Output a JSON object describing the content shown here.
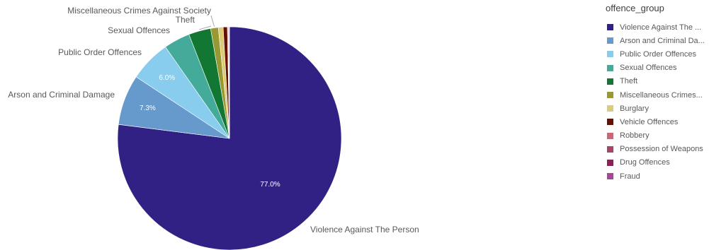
{
  "chart_data": {
    "type": "pie",
    "legend_title": "offence_group",
    "legend_position": "right",
    "slices": [
      {
        "name": "Violence Against The Person",
        "legend_label": "Violence Against The ...",
        "label": "Violence Against The Person",
        "value": 77.0,
        "pct_label": "77.0%",
        "color": "#322185"
      },
      {
        "name": "Arson and Criminal Damage",
        "legend_label": "Arson and Criminal Da...",
        "label": "Arson and Criminal Damage",
        "value": 7.3,
        "pct_label": "7.3%",
        "color": "#6699cc"
      },
      {
        "name": "Public Order Offences",
        "legend_label": "Public Order Offences",
        "label": "Public Order Offences",
        "value": 6.0,
        "pct_label": "6.0%",
        "color": "#88ccee"
      },
      {
        "name": "Sexual Offences",
        "legend_label": "Sexual Offences",
        "label": "Sexual Offences",
        "value": 3.8,
        "pct_label": "",
        "color": "#44aa99"
      },
      {
        "name": "Theft",
        "legend_label": "Theft",
        "label": "Theft",
        "value": 3.2,
        "pct_label": "",
        "color": "#117733"
      },
      {
        "name": "Miscellaneous Crimes Against Society",
        "legend_label": "Miscellaneous Crimes...",
        "label": "Miscellaneous Crimes Against Society",
        "value": 1.1,
        "pct_label": "",
        "color": "#999933"
      },
      {
        "name": "Burglary",
        "legend_label": "Burglary",
        "label": "",
        "value": 0.7,
        "pct_label": "",
        "color": "#ddcc77"
      },
      {
        "name": "Vehicle Offences",
        "legend_label": "Vehicle Offences",
        "label": "",
        "value": 0.6,
        "pct_label": "",
        "color": "#661100"
      },
      {
        "name": "Robbery",
        "legend_label": "Robbery",
        "label": "",
        "value": 0.1,
        "pct_label": "",
        "color": "#cc6677"
      },
      {
        "name": "Possession of Weapons",
        "legend_label": "Possession of Weapons",
        "label": "",
        "value": 0.1,
        "pct_label": "",
        "color": "#aa4466"
      },
      {
        "name": "Drug Offences",
        "legend_label": "Drug Offences",
        "label": "",
        "value": 0.05,
        "pct_label": "",
        "color": "#882255"
      },
      {
        "name": "Fraud",
        "legend_label": "Fraud",
        "label": "",
        "value": 0.05,
        "pct_label": "",
        "color": "#aa4499"
      }
    ]
  }
}
